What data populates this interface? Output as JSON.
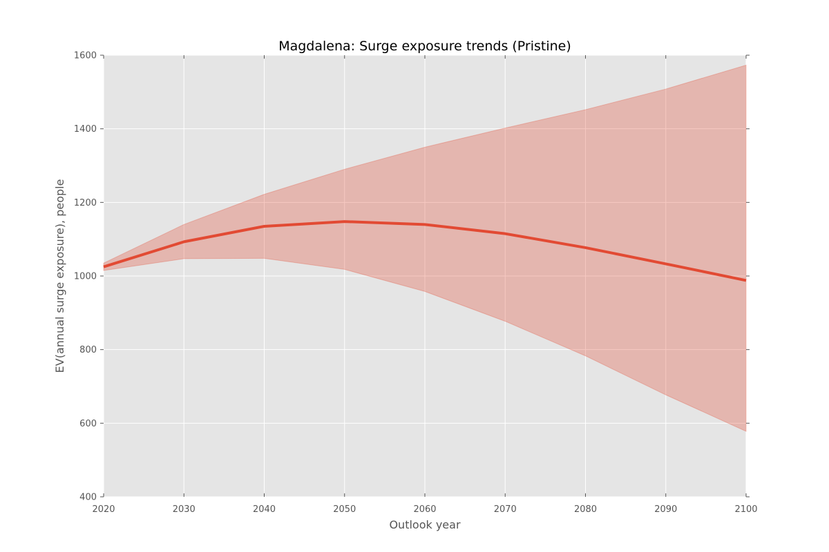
{
  "chart_data": {
    "type": "line",
    "title": "Magdalena: Surge exposure trends (Pristine)",
    "xlabel": "Outlook year",
    "ylabel": "EV(annual surge exposure), people",
    "xlim": [
      2020,
      2100
    ],
    "ylim": [
      400,
      1600
    ],
    "x_ticks": [
      2020,
      2030,
      2040,
      2050,
      2060,
      2070,
      2080,
      2090,
      2100
    ],
    "y_ticks": [
      400,
      600,
      800,
      1000,
      1200,
      1400,
      1600
    ],
    "x": [
      2020,
      2030,
      2040,
      2050,
      2060,
      2070,
      2080,
      2090,
      2100
    ],
    "series": [
      {
        "values": [
          1025,
          1093,
          1135,
          1148,
          1140,
          1115,
          1077,
          1033,
          988
        ],
        "color": "#e24a33"
      }
    ],
    "band": {
      "lower": [
        1015,
        1047,
        1048,
        1018,
        958,
        877,
        783,
        677,
        578
      ],
      "upper": [
        1035,
        1140,
        1222,
        1290,
        1350,
        1402,
        1452,
        1508,
        1573
      ],
      "color": "#e24a33",
      "opacity": 0.3
    },
    "grid": true,
    "plot_background": "#e5e5e5",
    "grid_color": "#ffffff"
  }
}
